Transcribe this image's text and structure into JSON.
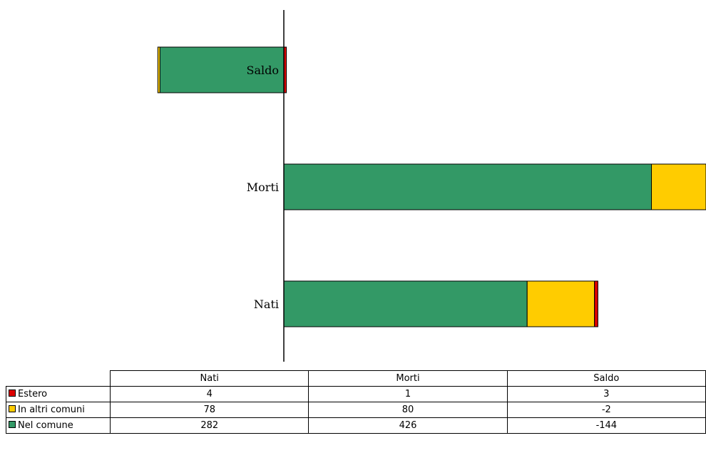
{
  "chart_data": {
    "type": "bar",
    "orientation": "horizontal",
    "stacked": true,
    "categories": [
      "Nati",
      "Morti",
      "Saldo"
    ],
    "series": [
      {
        "name": "Estero",
        "color": "#dd0000",
        "values": [
          4,
          1,
          3
        ]
      },
      {
        "name": "In altri comuni",
        "color": "#ffcc00",
        "values": [
          78,
          80,
          -2
        ]
      },
      {
        "name": "Nel comune",
        "color": "#339966",
        "values": [
          282,
          426,
          -144
        ]
      }
    ],
    "plot_order": [
      "Nel comune",
      "In altri comuni",
      "Estero"
    ],
    "table": {
      "columns": [
        "Nati",
        "Morti",
        "Saldo"
      ],
      "rows": [
        {
          "label": "Estero",
          "color": "#dd0000",
          "values": [
            "4",
            "1",
            "3"
          ]
        },
        {
          "label": "In altri comuni",
          "color": "#ffcc00",
          "values": [
            "78",
            "80",
            "-2"
          ]
        },
        {
          "label": "Nel comune",
          "color": "#339966",
          "values": [
            "282",
            "426",
            "-144"
          ]
        }
      ]
    }
  }
}
